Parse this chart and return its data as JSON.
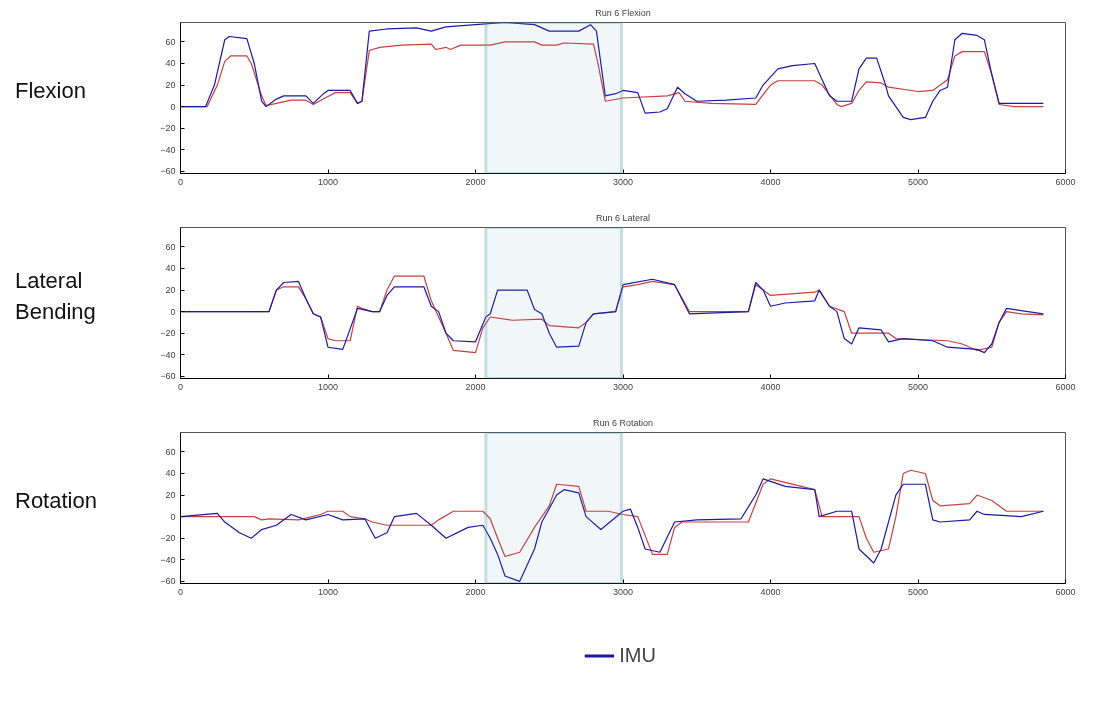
{
  "chart_data": [
    {
      "type": "line",
      "title": "Run 6 Flexion",
      "ylabel": "Flexion",
      "xlim": [
        0,
        6000
      ],
      "ylim": [
        -62,
        78
      ],
      "xticks": [
        0,
        1000,
        2000,
        3000,
        4000,
        5000,
        6000
      ],
      "yticks": [
        -60,
        -40,
        -20,
        0,
        20,
        40,
        60
      ],
      "grid": false,
      "legend": false,
      "line_style": "solid",
      "marker": "none",
      "bands": [
        {
          "axis": "x",
          "from": 2070,
          "to": 2990,
          "color": "#4a9aa5"
        }
      ],
      "series": [
        {
          "color": "#c84040",
          "x": [
            0,
            180,
            250,
            300,
            340,
            450,
            480,
            550,
            580,
            650,
            750,
            850,
            900,
            980,
            1050,
            1150,
            1200,
            1230,
            1280,
            1350,
            1500,
            1700,
            1730,
            1800,
            1830,
            1900,
            2100,
            2200,
            2400,
            2450,
            2550,
            2600,
            2800,
            2830,
            2880,
            3000,
            3300,
            3380,
            3420,
            3600,
            3900,
            4000,
            4050,
            4300,
            4350,
            4450,
            4480,
            4550,
            4600,
            4650,
            4750,
            4800,
            5000,
            5100,
            5200,
            5250,
            5300,
            5450,
            5500,
            5550,
            5650,
            5850
          ],
          "values": [
            0,
            0,
            20,
            42,
            47,
            47,
            40,
            10,
            1,
            3,
            6,
            6,
            2,
            8,
            13,
            13,
            3,
            5,
            52,
            55,
            57,
            58,
            53,
            55,
            53,
            57,
            57,
            60,
            60,
            57,
            57,
            59,
            58,
            40,
            5,
            8,
            10,
            13,
            5,
            3,
            2,
            20,
            24,
            24,
            20,
            2,
            0,
            3,
            15,
            23,
            22,
            18,
            14,
            15,
            25,
            47,
            51,
            51,
            30,
            2,
            0,
            0
          ]
        },
        {
          "color": "#1a1aa6",
          "x": [
            0,
            170,
            230,
            300,
            330,
            450,
            500,
            550,
            580,
            650,
            700,
            850,
            900,
            970,
            1000,
            1150,
            1200,
            1230,
            1280,
            1400,
            1600,
            1700,
            1800,
            2000,
            2200,
            2400,
            2500,
            2700,
            2780,
            2820,
            2880,
            2950,
            3000,
            3100,
            3150,
            3250,
            3300,
            3370,
            3420,
            3500,
            3700,
            3900,
            3950,
            4050,
            4150,
            4300,
            4350,
            4400,
            4450,
            4550,
            4600,
            4650,
            4720,
            4780,
            4800,
            4900,
            4950,
            5050,
            5100,
            5150,
            5200,
            5250,
            5300,
            5400,
            5450,
            5500,
            5550,
            5850
          ],
          "values": [
            0,
            0,
            20,
            62,
            65,
            63,
            40,
            5,
            0,
            7,
            10,
            10,
            3,
            12,
            15,
            15,
            3,
            5,
            70,
            72,
            73,
            70,
            74,
            76,
            78,
            76,
            70,
            70,
            76,
            70,
            10,
            12,
            15,
            13,
            -6,
            -5,
            -2,
            18,
            12,
            5,
            6,
            8,
            20,
            35,
            38,
            40,
            25,
            10,
            5,
            5,
            35,
            45,
            45,
            20,
            10,
            -10,
            -12,
            -10,
            5,
            15,
            18,
            62,
            68,
            66,
            62,
            30,
            3,
            3
          ]
        }
      ]
    },
    {
      "type": "line",
      "title": "Run 6 Lateral",
      "ylabel": "Lateral Bending",
      "xlim": [
        0,
        6000
      ],
      "ylim": [
        -62,
        78
      ],
      "xticks": [
        0,
        1000,
        2000,
        3000,
        4000,
        5000,
        6000
      ],
      "yticks": [
        -60,
        -40,
        -20,
        0,
        20,
        40,
        60
      ],
      "grid": false,
      "legend": false,
      "line_style": "solid",
      "marker": "none",
      "bands": [
        {
          "axis": "x",
          "from": 2070,
          "to": 2990,
          "color": "#4a9aa5"
        }
      ],
      "series": [
        {
          "color": "#c84040",
          "x": [
            0,
            600,
            650,
            700,
            800,
            850,
            900,
            950,
            1000,
            1050,
            1150,
            1200,
            1230,
            1300,
            1350,
            1400,
            1450,
            1650,
            1700,
            1750,
            1800,
            1850,
            2000,
            2050,
            2100,
            2250,
            2450,
            2500,
            2700,
            2750,
            2800,
            2950,
            3000,
            3100,
            3200,
            3350,
            3450,
            3850,
            3900,
            3950,
            4000,
            4300,
            4330,
            4400,
            4500,
            4550,
            4600,
            4800,
            4850,
            5200,
            5300,
            5400,
            5500,
            5550,
            5600,
            5700,
            5850
          ],
          "values": [
            0,
            0,
            20,
            23,
            23,
            12,
            -2,
            -5,
            -25,
            -27,
            -27,
            5,
            3,
            0,
            0,
            20,
            33,
            33,
            10,
            -5,
            -20,
            -36,
            -38,
            -15,
            -5,
            -8,
            -7,
            -13,
            -15,
            -10,
            -2,
            0,
            23,
            25,
            28,
            25,
            0,
            0,
            25,
            20,
            15,
            18,
            20,
            5,
            0,
            -20,
            -20,
            -20,
            -25,
            -27,
            -30,
            -36,
            -33,
            -10,
            0,
            -2,
            -3
          ]
        },
        {
          "color": "#1a1aa6",
          "x": [
            0,
            600,
            650,
            700,
            800,
            850,
            900,
            950,
            1000,
            1100,
            1200,
            1300,
            1350,
            1400,
            1450,
            1650,
            1700,
            1750,
            1800,
            1850,
            2000,
            2070,
            2100,
            2150,
            2350,
            2400,
            2450,
            2500,
            2550,
            2700,
            2750,
            2800,
            2950,
            3000,
            3200,
            3350,
            3450,
            3850,
            3900,
            3950,
            4000,
            4100,
            4300,
            4330,
            4400,
            4450,
            4500,
            4550,
            4600,
            4750,
            4800,
            4900,
            5100,
            5200,
            5400,
            5450,
            5500,
            5550,
            5600,
            5850
          ],
          "values": [
            0,
            0,
            20,
            27,
            28,
            12,
            -2,
            -5,
            -33,
            -35,
            3,
            0,
            0,
            15,
            23,
            23,
            5,
            0,
            -20,
            -27,
            -28,
            -5,
            -2,
            20,
            20,
            2,
            -2,
            -20,
            -33,
            -32,
            -10,
            -2,
            0,
            25,
            30,
            25,
            -2,
            0,
            27,
            20,
            5,
            8,
            10,
            20,
            5,
            0,
            -25,
            -30,
            -15,
            -17,
            -28,
            -25,
            -27,
            -33,
            -35,
            -38,
            -30,
            -10,
            3,
            -2
          ]
        }
      ]
    },
    {
      "type": "line",
      "title": "Run 6 Rotation",
      "ylabel": "Rotation",
      "xlim": [
        0,
        6000
      ],
      "ylim": [
        -62,
        78
      ],
      "xticks": [
        0,
        1000,
        2000,
        3000,
        4000,
        5000,
        6000
      ],
      "yticks": [
        -60,
        -40,
        -20,
        0,
        20,
        40,
        60
      ],
      "grid": false,
      "legend": "bottom",
      "line_style": "solid",
      "marker": "none",
      "bands": [
        {
          "axis": "x",
          "from": 2070,
          "to": 2990,
          "color": "#4a9aa5"
        }
      ],
      "series": [
        {
          "color": "#c84040",
          "x": [
            0,
            500,
            550,
            600,
            800,
            950,
            1000,
            1100,
            1150,
            1250,
            1300,
            1400,
            1700,
            1750,
            1850,
            2050,
            2100,
            2150,
            2200,
            2300,
            2400,
            2500,
            2550,
            2700,
            2750,
            2900,
            3000,
            3100,
            3200,
            3300,
            3350,
            3400,
            3850,
            3950,
            4000,
            4300,
            4350,
            4600,
            4650,
            4700,
            4800,
            4850,
            4900,
            4950,
            5050,
            5100,
            5150,
            5350,
            5400,
            5500,
            5600,
            5850
          ],
          "values": [
            0,
            0,
            -3,
            -2,
            -3,
            2,
            5,
            5,
            0,
            -2,
            -5,
            -8,
            -8,
            -3,
            5,
            5,
            -2,
            -20,
            -37,
            -33,
            -10,
            10,
            30,
            28,
            5,
            5,
            2,
            0,
            -35,
            -35,
            -10,
            -5,
            -5,
            30,
            35,
            25,
            0,
            0,
            -20,
            -33,
            -30,
            0,
            40,
            43,
            40,
            15,
            10,
            12,
            20,
            15,
            5,
            5
          ]
        },
        {
          "name": "IMU",
          "color": "#1a1aa6",
          "x": [
            0,
            250,
            300,
            400,
            480,
            550,
            650,
            750,
            850,
            1000,
            1100,
            1250,
            1320,
            1400,
            1450,
            1600,
            1700,
            1800,
            1950,
            2050,
            2100,
            2150,
            2200,
            2300,
            2400,
            2450,
            2550,
            2600,
            2700,
            2750,
            2850,
            3000,
            3050,
            3100,
            3150,
            3250,
            3350,
            3500,
            3800,
            3900,
            3950,
            4100,
            4300,
            4330,
            4450,
            4550,
            4600,
            4700,
            4750,
            4850,
            4900,
            5050,
            5100,
            5150,
            5350,
            5400,
            5450,
            5700,
            5850
          ],
          "values": [
            0,
            3,
            -5,
            -15,
            -20,
            -12,
            -8,
            2,
            -3,
            2,
            -3,
            -2,
            -20,
            -15,
            0,
            3,
            -8,
            -20,
            -10,
            -8,
            -20,
            -35,
            -55,
            -60,
            -30,
            -5,
            20,
            25,
            22,
            0,
            -12,
            5,
            7,
            -10,
            -30,
            -33,
            -5,
            -3,
            -2,
            20,
            35,
            28,
            25,
            0,
            5,
            5,
            -30,
            -43,
            -30,
            20,
            30,
            30,
            -3,
            -5,
            -3,
            5,
            2,
            0,
            5
          ]
        }
      ]
    }
  ]
}
